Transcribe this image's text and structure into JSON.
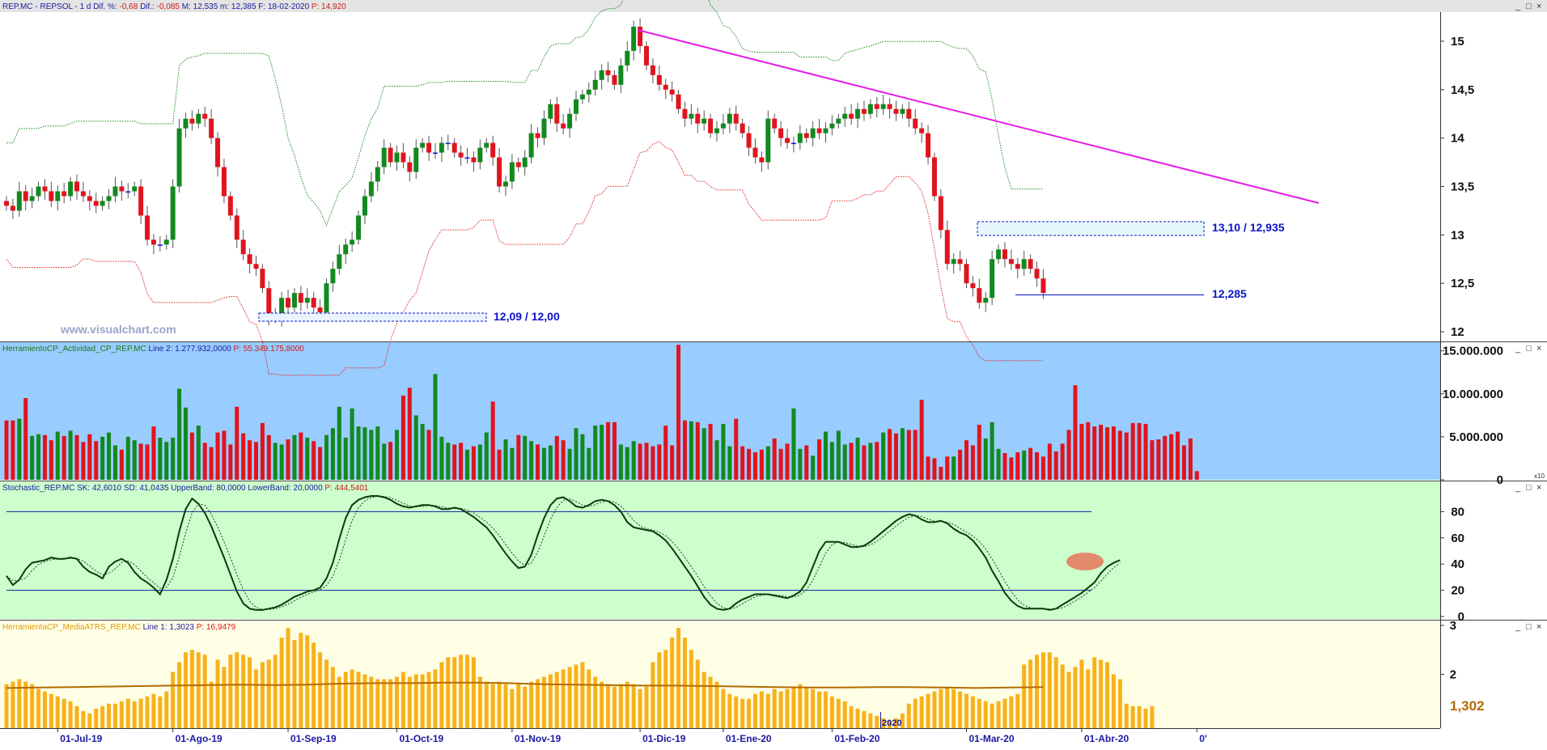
{
  "panels": {
    "price": {
      "header": [
        {
          "text": "REP.MC - REPSOL -  1 d",
          "color": "#1a1aa0"
        },
        {
          "text": "Dif. %:",
          "color": "#1a1aa0"
        },
        {
          "text": "-0,68",
          "color": "#d21a1a"
        },
        {
          "text": "Dif.:",
          "color": "#1a1aa0"
        },
        {
          "text": "-0,085",
          "color": "#d21a1a"
        },
        {
          "text": "M: 12,535",
          "color": "#1a1aa0"
        },
        {
          "text": "m: 12,385",
          "color": "#1a1aa0"
        },
        {
          "text": "F: 18-02-2020",
          "color": "#1a1aa0"
        },
        {
          "text": "P: 14,920",
          "color": "#d21a1a"
        }
      ],
      "watermark": "www.visualchart.com",
      "annotations": {
        "resistance_zone_label": "13,10 / 12,935",
        "support_line_label": "12,285",
        "support_zone_label": "12,09 / 12,00"
      }
    },
    "volume": {
      "header": [
        {
          "text": "HerramientoCP_Actividad_CP_REP.MC",
          "color": "#1a7a1a"
        },
        {
          "text": "Line 2: 1.277.932,0000",
          "color": "#1a1aa0"
        },
        {
          "text": "P: 55.349.175,8000",
          "color": "#d21a1a"
        }
      ],
      "scale_note": "x10"
    },
    "stochastic": {
      "header": [
        {
          "text": "Stochastic_REP.MC",
          "color": "#1a1aa0"
        },
        {
          "text": "SK: 42,6010",
          "color": "#1a1aa0"
        },
        {
          "text": "SD: 41,0435",
          "color": "#1a1aa0"
        },
        {
          "text": "UpperBand: 80,0000",
          "color": "#1a1aa0"
        },
        {
          "text": "LowerBand: 20,0000",
          "color": "#1a1aa0"
        },
        {
          "text": "P: 444,5401",
          "color": "#d21a1a"
        }
      ]
    },
    "atr": {
      "header": [
        {
          "text": "HerramientaCP_MediaATRS_REP.MC",
          "color": "#e09a00"
        },
        {
          "text": "Line 1: 1,3023",
          "color": "#1a1aa0"
        },
        {
          "text": "P: 16,9479",
          "color": "#d21a1a"
        }
      ],
      "last_value_label": "1,302",
      "year_marker": "2020"
    }
  },
  "window_buttons": [
    "_",
    "□",
    "×"
  ],
  "colors": {
    "up": "#12891f",
    "down": "#e0141e",
    "flat": "#1010d8",
    "upper_band": "#1c8a1c",
    "lower_band": "#e02020",
    "trendline": "#e51ee5",
    "volume_bg": "#99ccff",
    "stoch_bg": "#ccffcc",
    "atr_bg": "#ffffe6",
    "atr_bar": "#f7b21b",
    "atr_avg": "#b36b00",
    "annotation": "#0a14c8",
    "stoch_highlight": "#e8765a"
  },
  "chart_data": [
    {
      "type": "candlestick",
      "series_name": "REP.MC - REPSOL",
      "x_tick_labels": [
        "01-Jul-19",
        "01-Ago-19",
        "01-Sep-19",
        "01-Oct-19",
        "01-Nov-19",
        "01-Dic-19",
        "01-Ene-20",
        "01-Feb-20",
        "01-Mar-20",
        "01-Abr-20",
        "0'"
      ],
      "y_tick_labels": [
        "12",
        "12,5",
        "13",
        "13,5",
        "14",
        "14,5",
        "15"
      ],
      "ylim": [
        11.9,
        15.3
      ],
      "closes": [
        13.3,
        13.25,
        13.45,
        13.35,
        13.4,
        13.5,
        13.45,
        13.35,
        13.45,
        13.4,
        13.55,
        13.45,
        13.4,
        13.35,
        13.3,
        13.35,
        13.4,
        13.5,
        13.45,
        13.45,
        13.5,
        13.2,
        12.95,
        12.9,
        12.9,
        12.95,
        13.5,
        14.1,
        14.2,
        14.15,
        14.25,
        14.2,
        14.0,
        13.7,
        13.4,
        13.2,
        12.95,
        12.8,
        12.7,
        12.65,
        12.45,
        12.15,
        12.15,
        12.35,
        12.25,
        12.4,
        12.3,
        12.35,
        12.25,
        12.2,
        12.5,
        12.65,
        12.8,
        12.9,
        12.95,
        13.2,
        13.4,
        13.55,
        13.7,
        13.9,
        13.75,
        13.85,
        13.75,
        13.65,
        13.9,
        13.95,
        13.85,
        13.85,
        13.95,
        13.95,
        13.85,
        13.8,
        13.8,
        13.75,
        13.9,
        13.95,
        13.8,
        13.5,
        13.55,
        13.75,
        13.7,
        13.8,
        14.05,
        14.0,
        14.2,
        14.35,
        14.15,
        14.1,
        14.25,
        14.4,
        14.45,
        14.5,
        14.6,
        14.7,
        14.65,
        14.55,
        14.75,
        14.9,
        15.15,
        14.95,
        14.75,
        14.65,
        14.55,
        14.5,
        14.45,
        14.3,
        14.2,
        14.25,
        14.15,
        14.2,
        14.05,
        14.1,
        14.15,
        14.25,
        14.15,
        14.05,
        13.9,
        13.8,
        13.75,
        14.2,
        14.1,
        14.0,
        13.95,
        13.95,
        14.05,
        14.0,
        14.1,
        14.05,
        14.1,
        14.15,
        14.2,
        14.25,
        14.2,
        14.3,
        14.25,
        14.35,
        14.3,
        14.35,
        14.3,
        14.25,
        14.3,
        14.2,
        14.1,
        14.05,
        13.8,
        13.4,
        13.05,
        12.7,
        12.75,
        12.7,
        12.5,
        12.45,
        12.3,
        12.35,
        12.75,
        12.85,
        12.75,
        12.7,
        12.65,
        12.75,
        12.65,
        12.55,
        12.4
      ]
    },
    {
      "type": "bar",
      "series_name": "Volume",
      "y_tick_labels": [
        "0",
        "5.000.000",
        "10.000.000",
        "15.000.000"
      ],
      "ylim": [
        0,
        16000000
      ],
      "values": [
        6.9,
        6.9,
        7.1,
        9.5,
        5.1,
        5.3,
        5.2,
        4.6,
        5.6,
        5.1,
        5.7,
        5.2,
        4.4,
        5.3,
        4.5,
        5.0,
        5.5,
        4.0,
        3.5,
        5.0,
        4.6,
        4.2,
        4.1,
        6.2,
        4.9,
        4.4,
        4.9,
        10.6,
        8.4,
        5.5,
        6.3,
        4.3,
        3.8,
        5.5,
        5.7,
        4.1,
        8.5,
        5.4,
        4.6,
        4.4,
        6.6,
        5.2,
        4.3,
        4.1,
        4.7,
        5.2,
        5.5,
        4.9,
        4.5,
        3.8,
        5.2,
        6.0,
        8.5,
        4.9,
        8.3,
        6.2,
        6.1,
        5.8,
        6.2,
        4.2,
        4.4,
        5.8,
        9.8,
        10.7,
        7.5,
        6.5,
        5.8,
        12.3,
        5.0,
        4.3,
        4.1,
        4.3,
        3.5,
        3.9,
        4.1,
        5.5,
        9.1,
        3.5,
        4.7,
        3.7,
        5.2,
        5.1,
        4.5,
        4.1,
        3.7,
        4.0,
        5.1,
        4.6,
        3.6,
        6.0,
        5.3,
        3.7,
        6.3,
        6.4,
        6.7,
        6.7,
        4.1,
        3.8,
        4.5,
        4.2,
        4.3,
        3.9,
        4.1,
        6.3,
        4.0,
        15.7,
        6.9,
        6.8,
        6.7,
        6.0,
        6.5,
        4.6,
        6.5,
        3.9,
        7.1,
        3.9,
        3.6,
        3.2,
        3.5,
        3.9,
        4.8,
        3.6,
        4.2,
        8.3,
        3.6,
        4.0,
        2.8,
        4.7,
        5.6,
        4.4,
        5.7,
        4.1,
        4.3,
        4.9,
        4.0,
        4.3,
        4.4,
        5.5,
        5.9,
        5.4,
        6.0,
        5.8,
        5.8,
        9.3,
        2.7,
        2.5,
        1.5,
        2.7,
        2.7,
        3.5,
        4.6,
        4.0,
        6.4,
        4.8,
        6.7,
        3.6,
        3.1,
        2.6,
        3.2,
        3.4,
        3.7,
        3.2,
        2.7,
        4.2,
        3.3,
        4.2,
        5.8,
        11.0,
        6.5,
        6.7,
        6.2,
        6.4,
        6.1,
        6.2,
        5.7,
        5.5,
        6.6,
        6.6,
        6.5,
        4.6,
        4.7,
        5.1,
        5.3,
        5.6,
        4.0,
        4.8,
        1.0
      ]
    },
    {
      "type": "line",
      "series_name": "Stochastic",
      "y_tick_labels": [
        "0",
        "20",
        "40",
        "60",
        "80"
      ],
      "ylim": [
        0,
        100
      ],
      "bands": [
        80,
        20
      ],
      "values": [
        31,
        24,
        28,
        36,
        41,
        42,
        43,
        45,
        44,
        44,
        45,
        44,
        38,
        34,
        32,
        29,
        38,
        42,
        44,
        41,
        34,
        29,
        26,
        22,
        17,
        28,
        44,
        65,
        82,
        90,
        86,
        79,
        69,
        57,
        45,
        32,
        19,
        10,
        6,
        5,
        5,
        6,
        7,
        9,
        12,
        15,
        17,
        19,
        20,
        22,
        29,
        41,
        59,
        75,
        85,
        89,
        91,
        92,
        92,
        91,
        89,
        86,
        84,
        83,
        84,
        85,
        85,
        84,
        82,
        82,
        83,
        82,
        79,
        76,
        72,
        68,
        62,
        55,
        48,
        42,
        37,
        38,
        47,
        62,
        75,
        85,
        90,
        91,
        88,
        84,
        83,
        85,
        88,
        89,
        88,
        85,
        80,
        72,
        68,
        67,
        66,
        65,
        62,
        58,
        52,
        45,
        38,
        31,
        23,
        15,
        9,
        6,
        5,
        6,
        10,
        13,
        15,
        17,
        17,
        17,
        16,
        15,
        14,
        16,
        19,
        26,
        38,
        50,
        57,
        57,
        57,
        55,
        53,
        53,
        54,
        57,
        61,
        65,
        69,
        73,
        76,
        78,
        77,
        74,
        72,
        72,
        73,
        71,
        67,
        64,
        62,
        58,
        52,
        45,
        35,
        27,
        18,
        12,
        8,
        6,
        6,
        6,
        6,
        5,
        6,
        9,
        12,
        15,
        18,
        22,
        26,
        33,
        38,
        41,
        43
      ]
    },
    {
      "type": "bar",
      "series_name": "MediaATR",
      "y_tick_labels": [
        "2",
        "3"
      ],
      "ylim": [
        0.9,
        3.05
      ],
      "last_value": 1.302,
      "values": [
        1.8,
        1.85,
        1.9,
        1.85,
        1.8,
        1.7,
        1.65,
        1.6,
        1.55,
        1.5,
        1.45,
        1.35,
        1.25,
        1.2,
        1.3,
        1.35,
        1.4,
        1.4,
        1.45,
        1.5,
        1.45,
        1.5,
        1.55,
        1.6,
        1.55,
        1.65,
        2.05,
        2.25,
        2.45,
        2.5,
        2.45,
        2.4,
        1.85,
        2.3,
        2.15,
        2.4,
        2.45,
        2.4,
        2.35,
        2.1,
        2.25,
        2.3,
        2.4,
        2.75,
        2.95,
        2.7,
        2.85,
        2.8,
        2.65,
        2.45,
        2.3,
        2.15,
        1.95,
        2.05,
        2.1,
        2.05,
        2.0,
        1.95,
        1.9,
        1.9,
        1.9,
        1.95,
        2.05,
        1.95,
        2.0,
        2.0,
        2.05,
        2.1,
        2.25,
        2.35,
        2.35,
        2.4,
        2.4,
        2.35,
        1.95,
        1.85,
        1.8,
        1.85,
        1.8,
        1.7,
        1.8,
        1.75,
        1.85,
        1.9,
        1.95,
        2.0,
        2.05,
        2.1,
        2.15,
        2.2,
        2.25,
        2.1,
        1.95,
        1.85,
        1.8,
        1.75,
        1.8,
        1.85,
        1.8,
        1.7,
        1.75,
        2.25,
        2.45,
        2.5,
        2.75,
        2.95,
        2.75,
        2.5,
        2.3,
        2.05,
        1.95,
        1.85,
        1.7,
        1.6,
        1.55,
        1.5,
        1.5,
        1.6,
        1.65,
        1.6,
        1.7,
        1.65,
        1.7,
        1.75,
        1.8,
        1.75,
        1.7,
        1.65,
        1.65,
        1.55,
        1.5,
        1.45,
        1.35,
        1.3,
        1.25,
        1.2,
        1.15,
        1.1,
        1.05,
        1.1,
        1.2,
        1.4,
        1.5,
        1.55,
        1.6,
        1.65,
        1.7,
        1.75,
        1.7,
        1.65,
        1.6,
        1.55,
        1.5,
        1.45,
        1.4,
        1.45,
        1.5,
        1.55,
        1.6,
        2.2,
        2.3,
        2.4,
        2.45,
        2.45,
        2.35,
        2.2,
        2.05,
        2.15,
        2.3,
        2.1,
        2.35,
        2.3,
        2.25,
        2.0,
        1.9,
        1.4,
        1.35,
        1.35,
        1.3,
        1.35
      ],
      "average_values": [
        1.72,
        1.73,
        1.74,
        1.75,
        1.76,
        1.77,
        1.78,
        1.79,
        1.78,
        1.79,
        1.81,
        1.82,
        1.82,
        1.83,
        1.83,
        1.82,
        1.8,
        1.79,
        1.78,
        1.77,
        1.77,
        1.76,
        1.75,
        1.74,
        1.73,
        1.73,
        1.74,
        1.74,
        1.73,
        1.72,
        1.73,
        1.74
      ]
    }
  ]
}
